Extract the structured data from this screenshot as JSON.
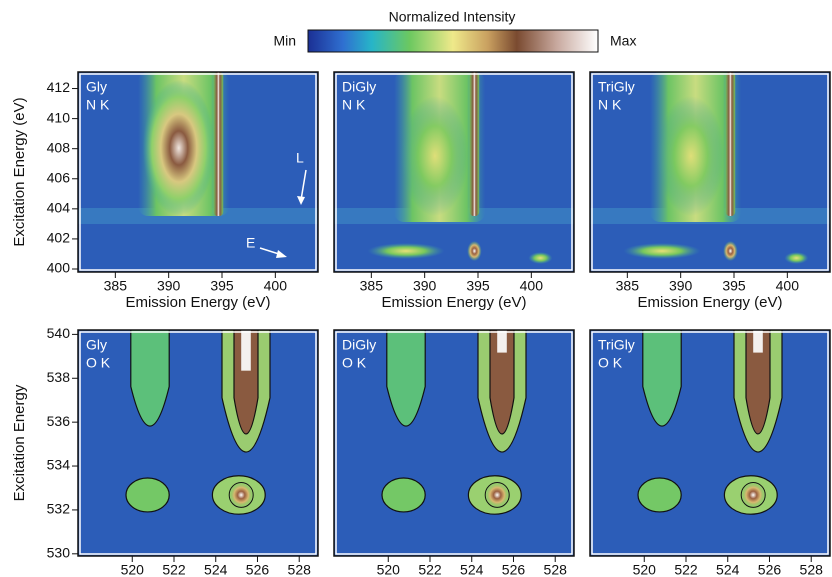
{
  "colorbar": {
    "title": "Normalized Intensity",
    "min_label": "Min",
    "max_label": "Max"
  },
  "chart_data": [
    {
      "type": "heatmap",
      "labels": [
        "Gly",
        "N K"
      ],
      "xlabel": "Emission Energy (eV)",
      "ylabel": "Excitation Energy (eV)",
      "xlim": [
        381.5,
        404
      ],
      "ylim": [
        399.8,
        413.1
      ],
      "xticks": [
        385,
        390,
        395,
        400
      ],
      "yticks": [
        400,
        402,
        404,
        406,
        408,
        410,
        412
      ],
      "annotations": [
        "L",
        "E"
      ]
    },
    {
      "type": "heatmap",
      "labels": [
        "DiGly",
        "N K"
      ],
      "xlabel": "Emission Energy (eV)",
      "xlim": [
        381.5,
        404
      ],
      "ylim": [
        399.8,
        413.1
      ],
      "xticks": [
        385,
        390,
        395,
        400
      ]
    },
    {
      "type": "heatmap",
      "labels": [
        "TriGly",
        "N K"
      ],
      "xlabel": "Emission Energy (eV)",
      "xlim": [
        381.5,
        404
      ],
      "ylim": [
        399.8,
        413.1
      ],
      "xticks": [
        385,
        390,
        395,
        400
      ]
    },
    {
      "type": "heatmap",
      "labels": [
        "Gly",
        "O K"
      ],
      "xlabel": "Emission Energy (eV)",
      "ylabel": "Excitation Energy",
      "xlim": [
        517.4,
        528.9
      ],
      "ylim": [
        529.9,
        540.2
      ],
      "xticks": [
        520,
        522,
        524,
        526,
        528
      ],
      "yticks": [
        530,
        532,
        534,
        536,
        538,
        540
      ]
    },
    {
      "type": "heatmap",
      "labels": [
        "DiGly",
        "O K"
      ],
      "xlabel": "Emission Energy (eV)",
      "xlim": [
        517.4,
        528.9
      ],
      "ylim": [
        529.9,
        540.2
      ],
      "xticks": [
        520,
        522,
        524,
        526,
        528
      ]
    },
    {
      "type": "heatmap",
      "labels": [
        "TriGly",
        "O K"
      ],
      "xlabel": "Emission Energy (eV)",
      "xlim": [
        517.4,
        528.9
      ],
      "ylim": [
        529.9,
        540.2
      ],
      "xticks": [
        520,
        522,
        524,
        526,
        528
      ]
    }
  ]
}
